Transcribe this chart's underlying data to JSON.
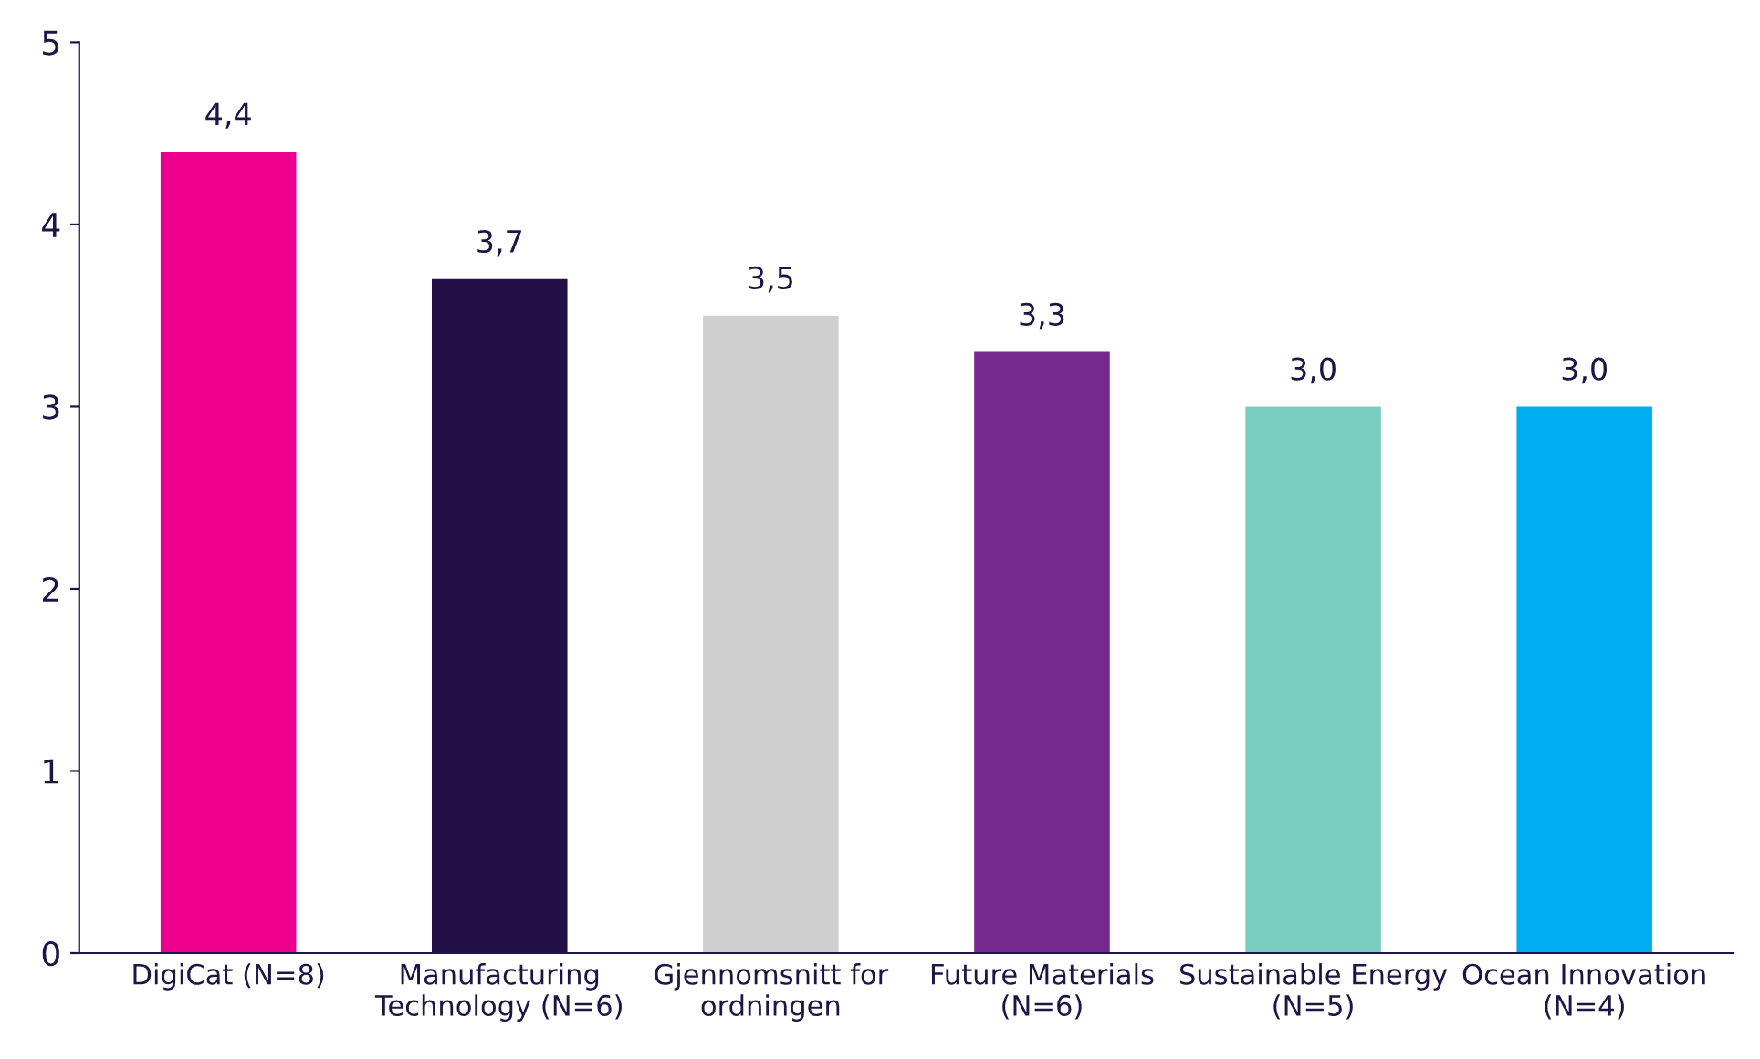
{
  "chart_data": {
    "type": "bar",
    "categories": [
      "DigiCat (N=8)",
      "Manufacturing\nTechnology (N=6)",
      "Gjennomsnitt for\nordningen",
      "Future Materials\n(N=6)",
      "Sustainable Energy\n(N=5)",
      "Ocean Innovation\n(N=4)"
    ],
    "values": [
      4.4,
      3.7,
      3.5,
      3.3,
      3.0,
      3.0
    ],
    "colors": [
      "#ec008c",
      "#220f46",
      "#d0cfd0",
      "#76298c",
      "#79cdc0",
      "#00aeef"
    ],
    "value_labels": [
      "4,4",
      "3,7",
      "3,5",
      "3,3",
      "3,0",
      "3,0"
    ],
    "ylim": [
      0,
      5
    ],
    "yticks": [
      0,
      1,
      2,
      3,
      4,
      5
    ],
    "grid": false,
    "legend": false
  }
}
